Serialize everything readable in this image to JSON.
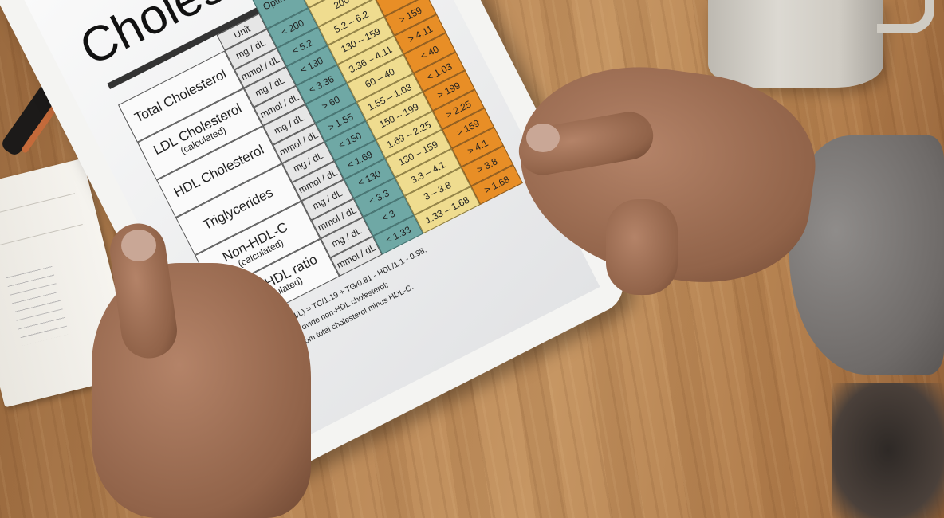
{
  "scene": "hands holding a tablet showing a cholesterol reference chart on a wooden table",
  "chart": {
    "title": "Choles",
    "headers": {
      "unit": "Unit",
      "optimal": "Optimal"
    },
    "groups": [
      {
        "label": "Total Cholesterol",
        "sub": ""
      },
      {
        "label": "LDL Cholesterol",
        "sub": "(calculated)"
      },
      {
        "label": "HDL Cholesterol",
        "sub": ""
      },
      {
        "label": "Triglycerides",
        "sub": ""
      },
      {
        "label": "Non-HDL-C",
        "sub": "(calculated)"
      },
      {
        "label": "TG to HDL ratio",
        "sub": "(calculated)"
      }
    ],
    "rows": [
      {
        "unit": "mg / dL",
        "optimal": "< 200",
        "mid": "200",
        "high": ""
      },
      {
        "unit": "mmol / dL",
        "optimal": "< 5.2",
        "mid": "5.2  –  6.2",
        "high": ""
      },
      {
        "unit": "mg / dL",
        "optimal": "< 130",
        "mid": "130  –  159",
        "high": "> 159"
      },
      {
        "unit": "mmol / dL",
        "optimal": "< 3.36",
        "mid": "3.36 – 4.11",
        "high": "> 4.11"
      },
      {
        "unit": "mg / dL",
        "optimal": "> 60",
        "mid": "60  –  40",
        "high": "< 40"
      },
      {
        "unit": "mmol / dL",
        "optimal": "> 1.55",
        "mid": "1.55 – 1.03",
        "high": "< 1.03"
      },
      {
        "unit": "mg / dL",
        "optimal": "< 150",
        "mid": "150  –  199",
        "high": "> 199"
      },
      {
        "unit": "mmol / dL",
        "optimal": "< 1.69",
        "mid": "1.69 – 2.25",
        "high": "> 2.25"
      },
      {
        "unit": "mg / dL",
        "optimal": "< 130",
        "mid": "130  –  159",
        "high": "> 159"
      },
      {
        "unit": "mmol / dL",
        "optimal": "< 3.3",
        "mid": "3.3  –  4.1",
        "high": "> 4.1"
      },
      {
        "unit": "mg / dL",
        "optimal": "< 3",
        "mid": "3  –  3.8",
        "high": "> 3.8"
      },
      {
        "unit": "mmol / dL",
        "optimal": "< 1.33",
        "mid": "1.33 – 1.68",
        "high": "> 1.68"
      }
    ],
    "notes": [
      "LDL-C (mmol/L) = TC/1.19 + TG/0.81 - HDL/1.1 - 0.98.",
      "Some labs provide non-HDL cholesterol;",
      "calculated from total cholesterol minus HDL-C."
    ],
    "colors": {
      "optimal": "#6fa8a5",
      "borderline": "#efdc8f",
      "high": "#e88e26"
    }
  }
}
